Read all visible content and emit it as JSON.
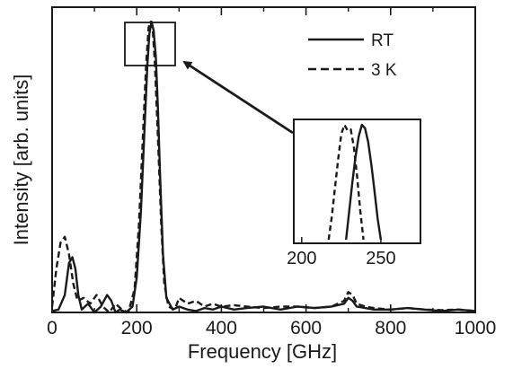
{
  "chart_data": {
    "type": "line",
    "xlabel": "Frequency [GHz]",
    "ylabel": "Intensity [arb. units]",
    "xlim": [
      0,
      1000
    ],
    "ylim": [
      0,
      1.05
    ],
    "x_ticks": [
      "0",
      "200",
      "400",
      "600",
      "800",
      "1000"
    ],
    "y_ticks_labeled": false,
    "grid": false,
    "legend": {
      "placement": "top-right",
      "entries": [
        {
          "label": "RT",
          "style": "solid"
        },
        {
          "label": "3 K",
          "style": "dashed"
        }
      ]
    },
    "series": [
      {
        "name": "RT",
        "style": "solid",
        "x": [
          0,
          15,
          30,
          40,
          48,
          55,
          62,
          70,
          85,
          100,
          115,
          130,
          140,
          150,
          160,
          175,
          190,
          200,
          210,
          218,
          225,
          230,
          235,
          240,
          245,
          250,
          255,
          262,
          270,
          285,
          300,
          320,
          340,
          360,
          380,
          400,
          430,
          460,
          500,
          540,
          580,
          620,
          660,
          690,
          700,
          710,
          720,
          740,
          760,
          800,
          840,
          880,
          920,
          960,
          1000
        ],
        "y": [
          0.005,
          0.01,
          0.06,
          0.17,
          0.19,
          0.15,
          0.06,
          0.01,
          0.03,
          0.0,
          0.02,
          0.06,
          0.04,
          0.0,
          0.01,
          0.0,
          0.02,
          0.12,
          0.35,
          0.62,
          0.85,
          0.96,
          1.0,
          0.97,
          0.88,
          0.7,
          0.48,
          0.2,
          0.05,
          0.01,
          0.02,
          0.01,
          0.005,
          0.015,
          0.01,
          0.02,
          0.01,
          0.015,
          0.02,
          0.01,
          0.02,
          0.015,
          0.02,
          0.03,
          0.05,
          0.04,
          0.02,
          0.015,
          0.01,
          0.01,
          0.015,
          0.01,
          0.005,
          0.01,
          0.005
        ]
      },
      {
        "name": "3 K",
        "style": "dashed",
        "x": [
          0,
          10,
          20,
          30,
          40,
          50,
          60,
          75,
          90,
          105,
          120,
          135,
          150,
          165,
          180,
          195,
          205,
          215,
          222,
          228,
          233,
          238,
          243,
          250,
          258,
          265,
          275,
          290,
          300,
          320,
          340,
          360,
          380,
          400,
          430,
          460,
          500,
          540,
          580,
          620,
          660,
          690,
          700,
          710,
          720,
          740,
          760,
          800,
          840,
          880,
          920,
          960,
          1000
        ],
        "y": [
          0.02,
          0.15,
          0.24,
          0.26,
          0.2,
          0.1,
          0.04,
          0.05,
          0.03,
          0.06,
          0.02,
          0.0,
          0.03,
          0.01,
          0.0,
          0.08,
          0.3,
          0.62,
          0.85,
          0.98,
          1.0,
          0.97,
          0.85,
          0.6,
          0.3,
          0.1,
          0.02,
          0.01,
          0.05,
          0.03,
          0.04,
          0.02,
          0.03,
          0.02,
          0.025,
          0.02,
          0.015,
          0.02,
          0.02,
          0.015,
          0.02,
          0.04,
          0.07,
          0.06,
          0.03,
          0.02,
          0.015,
          0.01,
          0.015,
          0.01,
          0.008,
          0.01,
          0.005
        ]
      }
    ],
    "inset": {
      "type": "line",
      "xlim": [
        195,
        275
      ],
      "x_ticks": [
        "200",
        "250"
      ],
      "description_arrow": "points from zoom box around main peak to inset",
      "series": [
        {
          "name": "RT",
          "style": "solid",
          "x": [
            228,
            230,
            232,
            234,
            236,
            238,
            240,
            242,
            244,
            246,
            248,
            250
          ],
          "y": [
            0.0,
            0.25,
            0.5,
            0.72,
            0.9,
            1.0,
            0.97,
            0.85,
            0.65,
            0.42,
            0.18,
            0.0
          ]
        },
        {
          "name": "3 K",
          "style": "dashed",
          "x": [
            217,
            219,
            221,
            223,
            225,
            227,
            229,
            231,
            233,
            235,
            237,
            239
          ],
          "y": [
            0.0,
            0.2,
            0.45,
            0.7,
            0.92,
            1.0,
            0.95,
            0.96,
            0.8,
            0.55,
            0.25,
            0.0
          ]
        }
      ]
    }
  }
}
